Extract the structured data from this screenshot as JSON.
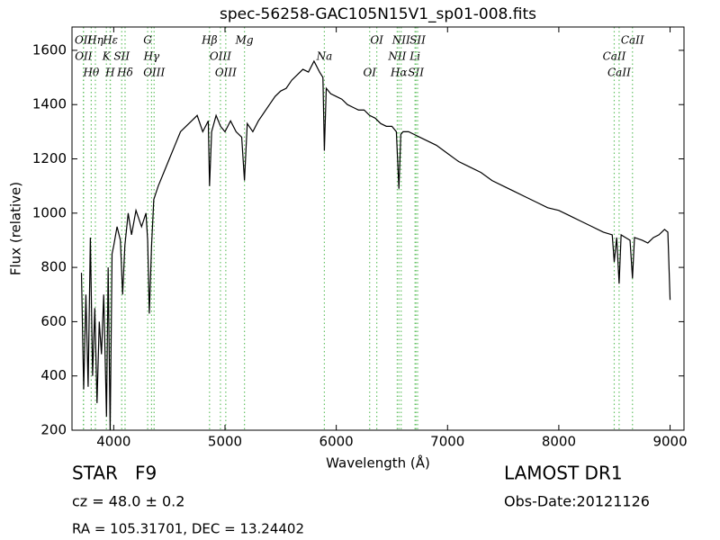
{
  "chart_data": {
    "type": "line",
    "title": "spec-56258-GAC105N15V1_sp01-008.fits",
    "x_label": "Wavelength (Å)",
    "y_label": "Flux (relative)",
    "object_class": "STAR   F9",
    "redshift": "cz = 48.0 ± 0.2",
    "coordinates": "RA = 105.31701, DEC = 13.24402",
    "survey": "LAMOST DR1",
    "obs_date": "Obs-Date:20121126",
    "xlim": [
      3625,
      9125
    ],
    "ylim": [
      200,
      1686
    ],
    "xticks": [
      4000,
      5000,
      6000,
      7000,
      8000,
      9000
    ],
    "yticks": [
      200,
      400,
      600,
      800,
      1000,
      1200,
      1400,
      1600
    ],
    "line_color": "#66c266",
    "lines": [
      {
        "wavelength": 3727,
        "label": "OII"
      },
      {
        "wavelength": 3729,
        "label": "OII"
      },
      {
        "wavelength": 3798,
        "label": "Hθ"
      },
      {
        "wavelength": 3835,
        "label": "Hη"
      },
      {
        "wavelength": 3934,
        "label": "K"
      },
      {
        "wavelength": 3968,
        "label": "H"
      },
      {
        "wavelength": 3970,
        "label": "Hε"
      },
      {
        "wavelength": 4072,
        "label": "SII"
      },
      {
        "wavelength": 4102,
        "label": "Hδ"
      },
      {
        "wavelength": 4305,
        "label": "G"
      },
      {
        "wavelength": 4340,
        "label": "Hγ"
      },
      {
        "wavelength": 4363,
        "label": "OIII"
      },
      {
        "wavelength": 4861,
        "label": "Hβ"
      },
      {
        "wavelength": 4959,
        "label": "OIII"
      },
      {
        "wavelength": 5007,
        "label": "OIII"
      },
      {
        "wavelength": 5175,
        "label": "Mg"
      },
      {
        "wavelength": 5893,
        "label": "Na"
      },
      {
        "wavelength": 6300,
        "label": "OI"
      },
      {
        "wavelength": 6364,
        "label": "OI"
      },
      {
        "wavelength": 6548,
        "label": "NII"
      },
      {
        "wavelength": 6563,
        "label": "Hα"
      },
      {
        "wavelength": 6583,
        "label": "NII"
      },
      {
        "wavelength": 6708,
        "label": "Li"
      },
      {
        "wavelength": 6716,
        "label": "SII"
      },
      {
        "wavelength": 6731,
        "label": "SII"
      },
      {
        "wavelength": 8498,
        "label": "CaII"
      },
      {
        "wavelength": 8542,
        "label": "CaII"
      },
      {
        "wavelength": 8662,
        "label": "CaII"
      }
    ],
    "x": [
      3710,
      3730,
      3750,
      3770,
      3790,
      3810,
      3830,
      3850,
      3870,
      3890,
      3910,
      3935,
      3950,
      3968,
      3985,
      4000,
      4030,
      4060,
      4080,
      4100,
      4130,
      4160,
      4200,
      4250,
      4290,
      4305,
      4320,
      4340,
      4360,
      4400,
      4450,
      4500,
      4550,
      4600,
      4650,
      4700,
      4750,
      4800,
      4850,
      4861,
      4880,
      4920,
      4960,
      5000,
      5050,
      5100,
      5150,
      5175,
      5200,
      5250,
      5300,
      5350,
      5400,
      5450,
      5500,
      5550,
      5600,
      5650,
      5700,
      5750,
      5800,
      5850,
      5880,
      5893,
      5910,
      5950,
      6000,
      6050,
      6100,
      6150,
      6200,
      6250,
      6300,
      6350,
      6400,
      6450,
      6500,
      6540,
      6563,
      6580,
      6600,
      6650,
      6700,
      6750,
      6800,
      6900,
      7000,
      7100,
      7200,
      7300,
      7400,
      7500,
      7600,
      7700,
      7800,
      7900,
      8000,
      8100,
      8200,
      8300,
      8400,
      8480,
      8498,
      8520,
      8542,
      8560,
      8600,
      8640,
      8662,
      8680,
      8750,
      8800,
      8850,
      8900,
      8950,
      8980,
      9000
    ],
    "series": [
      {
        "name": "flux",
        "color": "#000000",
        "values": [
          780,
          350,
          700,
          360,
          910,
          400,
          650,
          300,
          600,
          480,
          700,
          250,
          800,
          200,
          850,
          880,
          950,
          900,
          700,
          880,
          1000,
          920,
          1010,
          950,
          1000,
          900,
          630,
          880,
          1050,
          1100,
          1150,
          1200,
          1250,
          1300,
          1320,
          1340,
          1360,
          1300,
          1340,
          1100,
          1300,
          1360,
          1320,
          1300,
          1340,
          1300,
          1280,
          1120,
          1330,
          1300,
          1340,
          1370,
          1400,
          1430,
          1450,
          1460,
          1490,
          1510,
          1530,
          1520,
          1560,
          1520,
          1500,
          1230,
          1460,
          1440,
          1430,
          1420,
          1400,
          1390,
          1380,
          1380,
          1360,
          1350,
          1330,
          1320,
          1320,
          1300,
          1090,
          1290,
          1300,
          1300,
          1290,
          1280,
          1270,
          1250,
          1220,
          1190,
          1170,
          1150,
          1120,
          1100,
          1080,
          1060,
          1040,
          1020,
          1010,
          990,
          970,
          950,
          930,
          920,
          820,
          910,
          740,
          920,
          910,
          900,
          760,
          910,
          900,
          890,
          910,
          920,
          940,
          930,
          680
        ]
      }
    ]
  }
}
